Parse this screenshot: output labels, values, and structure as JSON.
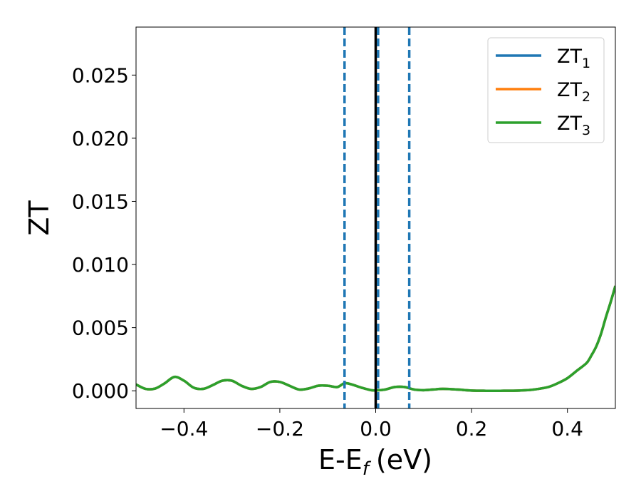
{
  "chart_data": {
    "type": "line",
    "xlabel": "E-E",
    "xlabel_sub": "f",
    "xlabel_unit": "(eV)",
    "ylabel": "ZT",
    "xlim": [
      -0.5,
      0.5
    ],
    "ylim": [
      -0.0014,
      0.0288
    ],
    "xticks": [
      -0.4,
      -0.2,
      0.0,
      0.2,
      0.4
    ],
    "xtick_labels": [
      "−0.4",
      "−0.2",
      "0.0",
      "0.2",
      "0.4"
    ],
    "yticks": [
      0.0,
      0.005,
      0.01,
      0.015,
      0.02,
      0.025
    ],
    "ytick_labels": [
      "0.000",
      "0.005",
      "0.010",
      "0.015",
      "0.020",
      "0.025"
    ],
    "grid": false,
    "legend_position": "top-right",
    "series": [
      {
        "name": "ZT",
        "sub": "1",
        "color": "#1f77b4"
      },
      {
        "name": "ZT",
        "sub": "2",
        "color": "#ff7f0e"
      },
      {
        "name": "ZT",
        "sub": "3",
        "color": "#2ca02c"
      }
    ],
    "x": [
      -0.5,
      -0.48,
      -0.46,
      -0.44,
      -0.42,
      -0.4,
      -0.38,
      -0.36,
      -0.34,
      -0.32,
      -0.3,
      -0.28,
      -0.26,
      -0.24,
      -0.22,
      -0.2,
      -0.18,
      -0.16,
      -0.14,
      -0.12,
      -0.1,
      -0.08,
      -0.065,
      -0.05,
      -0.03,
      -0.01,
      0.0,
      0.02,
      0.04,
      0.06,
      0.08,
      0.1,
      0.12,
      0.14,
      0.17,
      0.2,
      0.23,
      0.26,
      0.3,
      0.33,
      0.36,
      0.38,
      0.4,
      0.42,
      0.44,
      0.45,
      0.46,
      0.47,
      0.48,
      0.49,
      0.5
    ],
    "y": [
      0.0005,
      0.00015,
      0.00018,
      0.0006,
      0.0011,
      0.0008,
      0.00025,
      0.00015,
      0.00045,
      0.0008,
      0.0008,
      0.0004,
      0.00015,
      0.0003,
      0.0007,
      0.0007,
      0.0004,
      0.0001,
      0.00018,
      0.0004,
      0.0004,
      0.0003,
      0.0006,
      0.0005,
      0.00025,
      5e-05,
      3e-05,
      0.0001,
      0.0003,
      0.0003,
      0.0001,
      5e-05,
      0.0001,
      0.00015,
      0.0001,
      2e-05,
      0.0,
      0.0,
      2e-05,
      0.0001,
      0.0003,
      0.0006,
      0.001,
      0.0016,
      0.0022,
      0.0028,
      0.0035,
      0.0045,
      0.0058,
      0.007,
      0.0083
    ],
    "vlines": [
      {
        "x": -0.065,
        "style": "dashed",
        "color": "#1f77b4"
      },
      {
        "x": 0.0,
        "style": "solid",
        "color": "#000000"
      },
      {
        "x": 0.005,
        "style": "dashed",
        "color": "#1f77b4"
      },
      {
        "x": 0.07,
        "style": "dashed",
        "color": "#1f77b4"
      }
    ]
  }
}
